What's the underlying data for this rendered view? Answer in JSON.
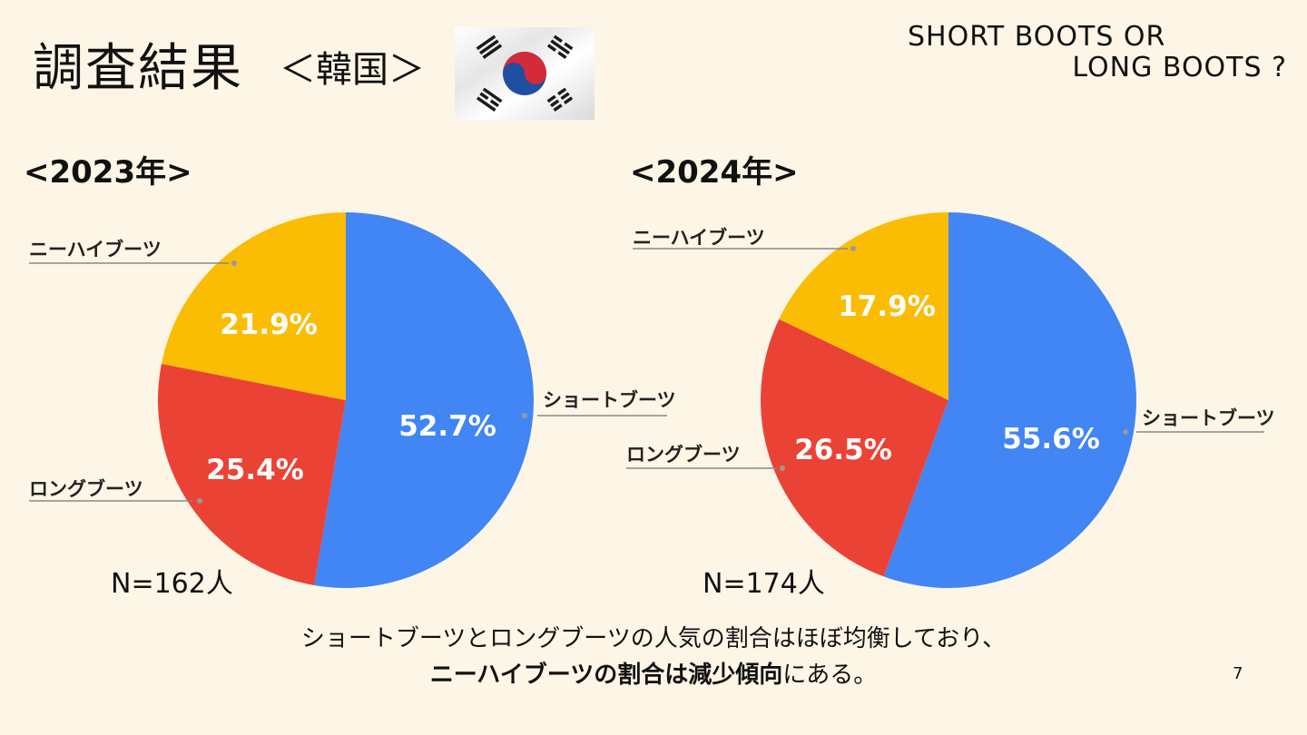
{
  "header": {
    "title": "調査結果",
    "subtitle": "＜韓国＞",
    "tagline_line1": "SHORT BOOTS OR",
    "tagline_line2": "LONG BOOTS ?",
    "flag_icon": "south-korea-flag-icon"
  },
  "chart_data": [
    {
      "type": "pie",
      "title": "<2023年>",
      "n_label": "N=162人",
      "slices": [
        {
          "label": "ショートブーツ",
          "value": 52.7,
          "display": "52.7%",
          "color": "#4285f4"
        },
        {
          "label": "ロングブーツ",
          "value": 25.4,
          "display": "25.4%",
          "color": "#ea4335"
        },
        {
          "label": "ニーハイブーツ",
          "value": 21.9,
          "display": "21.9%",
          "color": "#fbbc04"
        }
      ]
    },
    {
      "type": "pie",
      "title": "<2024年>",
      "n_label": "N=174人",
      "slices": [
        {
          "label": "ショートブーツ",
          "value": 55.6,
          "display": "55.6%",
          "color": "#4285f4"
        },
        {
          "label": "ロングブーツ",
          "value": 26.5,
          "display": "26.5%",
          "color": "#ea4335"
        },
        {
          "label": "ニーハイブーツ",
          "value": 17.9,
          "display": "17.9%",
          "color": "#fbbc04"
        }
      ]
    }
  ],
  "summary": {
    "line1": "ショートブーツとロングブーツの人気の割合はほぼ均衡しており、",
    "line2_bold": "ニーハイブーツの割合は減少傾向",
    "line2_rest": "にある。"
  },
  "page_number": "7"
}
